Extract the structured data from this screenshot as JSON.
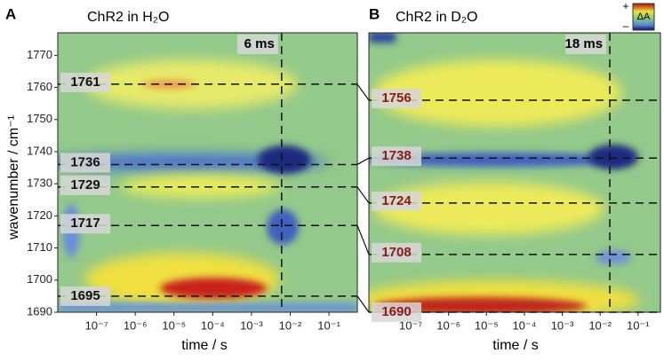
{
  "chart_data": [
    {
      "type": "heatmap",
      "panel": "A",
      "title": "ChR2 in H₂O",
      "xlabel": "time / s",
      "ylabel": "wavenumber / cm⁻¹",
      "xscale": "log",
      "xlim": [
        1e-08,
        0.54
      ],
      "ylim": [
        1690,
        1777
      ],
      "xticks": [
        {
          "value": 1e-07,
          "label": "10⁻⁷"
        },
        {
          "value": 1e-06,
          "label": "10⁻⁶"
        },
        {
          "value": 1e-05,
          "label": "10⁻⁵"
        },
        {
          "value": 0.0001,
          "label": "10⁻⁴"
        },
        {
          "value": 0.001,
          "label": "10⁻³"
        },
        {
          "value": 0.01,
          "label": "10⁻²"
        },
        {
          "value": 0.1,
          "label": "10⁻¹"
        }
      ],
      "yticks": [
        1690,
        1700,
        1710,
        1720,
        1730,
        1740,
        1750,
        1760,
        1770
      ],
      "bands": [
        1761,
        1736,
        1729,
        1717,
        1695
      ],
      "band_color": "#111111",
      "marker": {
        "label": "6 ms",
        "x": 0.006
      }
    },
    {
      "type": "heatmap",
      "panel": "B",
      "title": "ChR2 in D₂O",
      "xlabel": "time / s",
      "xscale": "log",
      "xlim": [
        7.9e-09,
        0.39
      ],
      "ylim": [
        1690,
        1777
      ],
      "xticks": [
        {
          "value": 1e-07,
          "label": "10⁻⁷"
        },
        {
          "value": 1e-06,
          "label": "10⁻⁶"
        },
        {
          "value": 1e-05,
          "label": "10⁻⁵"
        },
        {
          "value": 0.0001,
          "label": "10⁻⁴"
        },
        {
          "value": 0.001,
          "label": "10⁻³"
        },
        {
          "value": 0.01,
          "label": "10⁻²"
        },
        {
          "value": 0.1,
          "label": "10⁻¹"
        }
      ],
      "bands": [
        1756,
        1738,
        1724,
        1708,
        1690
      ],
      "band_color": "#8b1a1a",
      "marker": {
        "label": "18 ms",
        "x": 0.018
      },
      "colorbar": {
        "plus": "+",
        "minus": "–",
        "label": "ΔA"
      }
    }
  ]
}
